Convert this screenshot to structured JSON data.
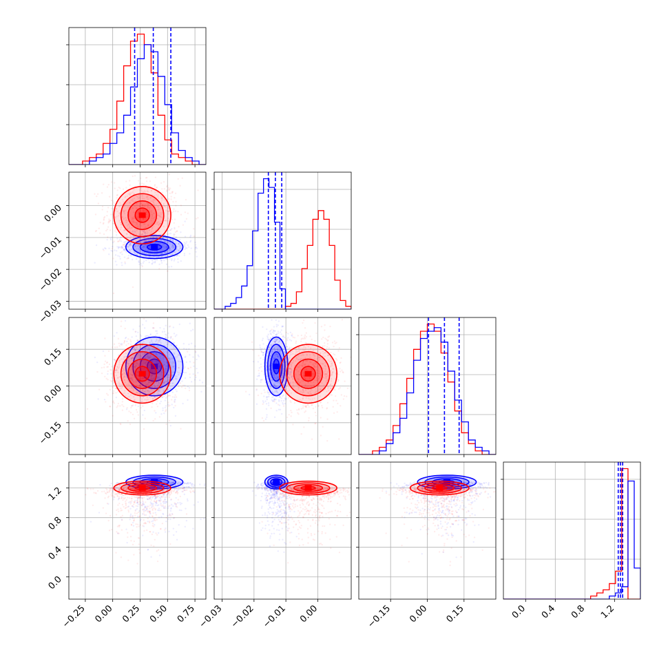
{
  "chart_data": {
    "type": "corner",
    "colors": {
      "series_a": "#ff0000",
      "series_b": "#0000ff"
    },
    "parameters": [
      {
        "range": [
          -0.4,
          0.85
        ],
        "ticks": [
          -0.25,
          0.0,
          0.25,
          0.5,
          0.75
        ],
        "tick_labels": [
          "−0.25",
          "0.00",
          "0.25",
          "0.50",
          "0.75"
        ]
      },
      {
        "range": [
          -0.0325,
          0.0105
        ],
        "ticks": [
          -0.03,
          -0.02,
          -0.01,
          0.0
        ],
        "tick_labels": [
          "−0.03",
          "−0.02",
          "−0.01",
          "0.00"
        ]
      },
      {
        "range": [
          -0.28,
          0.28
        ],
        "ticks": [
          -0.15,
          0.0,
          0.15
        ],
        "tick_labels": [
          "−0.15",
          "0.00",
          "0.15"
        ]
      },
      {
        "range": [
          -0.3,
          1.55
        ],
        "ticks": [
          0.0,
          0.4,
          0.8,
          1.2
        ],
        "tick_labels": [
          "0.0",
          "0.4",
          "0.8",
          "1.2"
        ]
      }
    ],
    "histograms": [
      {
        "red": [
          0,
          0,
          1,
          2,
          3,
          6,
          10,
          18,
          28,
          35,
          37,
          34,
          26,
          14,
          7,
          3,
          2,
          1,
          0,
          0
        ],
        "blue": [
          0,
          0,
          0,
          1,
          2,
          3,
          6,
          9,
          14,
          22,
          30,
          34,
          32,
          25,
          17,
          9,
          4,
          2,
          1,
          0
        ],
        "quantiles_blue": [
          0.2,
          0.37,
          0.53
        ]
      },
      {
        "red": [
          0,
          0,
          0,
          0,
          0,
          0,
          0,
          0,
          0,
          0,
          0,
          0,
          0,
          1,
          2,
          6,
          14,
          22,
          31,
          34,
          31,
          22,
          10,
          3,
          1
        ],
        "blue": [
          0,
          0,
          1,
          2,
          4,
          8,
          15,
          27,
          40,
          45,
          42,
          30,
          7,
          0,
          0,
          0,
          0,
          0,
          0,
          0,
          0,
          0,
          0,
          0,
          0
        ],
        "quantiles_blue": [
          -0.0155,
          -0.0133,
          -0.0113
        ]
      },
      {
        "red": [
          0,
          0,
          1,
          2,
          4,
          8,
          14,
          21,
          29,
          34,
          36,
          34,
          28,
          20,
          12,
          6,
          3,
          1,
          0,
          0
        ],
        "blue": [
          0,
          0,
          0,
          1,
          3,
          6,
          10,
          17,
          26,
          32,
          34,
          35,
          31,
          23,
          15,
          9,
          4,
          2,
          1,
          0
        ],
        "quantiles_blue": [
          0.005,
          0.07,
          0.13
        ]
      },
      {
        "red": [
          0,
          0,
          0,
          0,
          0,
          0,
          0,
          0,
          0,
          0,
          0,
          0,
          0,
          0,
          1,
          2,
          3,
          5,
          9,
          42,
          0,
          0
        ],
        "blue": [
          0,
          0,
          0,
          0,
          0,
          0,
          0,
          0,
          0,
          0,
          0,
          0,
          0,
          0,
          0,
          0,
          0,
          1,
          2,
          4,
          38,
          10
        ],
        "quantiles_blue": [
          1.25,
          1.28,
          1.31
        ]
      }
    ],
    "pair_centers": {
      "red": [
        0.27,
        -0.003,
        0.05,
        1.2
      ],
      "blue": [
        0.38,
        -0.013,
        0.08,
        1.28
      ]
    },
    "pair_spreads": {
      "red": [
        0.13,
        0.0045,
        0.06,
        0.07
      ],
      "blue": [
        0.13,
        0.0018,
        0.06,
        0.05
      ]
    }
  }
}
